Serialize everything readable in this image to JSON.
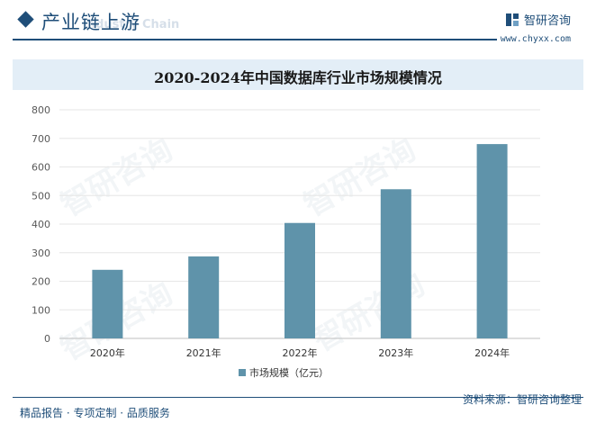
{
  "header": {
    "section_title": "产业链上游",
    "section_subtitle": "Industry Chain",
    "brand_name": "智研咨询",
    "brand_url": "www.chyxx.com"
  },
  "chart_data": {
    "type": "bar",
    "title": "2020-2024年中国数据库行业市场规模情况",
    "categories": [
      "2020年",
      "2021年",
      "2022年",
      "2023年",
      "2024年"
    ],
    "series": [
      {
        "name": "市场规模（亿元）",
        "values": [
          240,
          287,
          404,
          522,
          680
        ]
      }
    ],
    "ylim": [
      0,
      800
    ],
    "yticks": [
      0,
      100,
      200,
      300,
      400,
      500,
      600,
      700,
      800
    ],
    "xlabel": "",
    "ylabel": "",
    "legend_position": "bottom",
    "grid": true,
    "colors": {
      "bar": "#5f93aa",
      "grid": "#e6e6e6",
      "axis": "#bfbfbf"
    }
  },
  "footer": {
    "left_text": "精品报告 · 专项定制 · 品质服务",
    "source": "资料来源：智研咨询整理"
  }
}
